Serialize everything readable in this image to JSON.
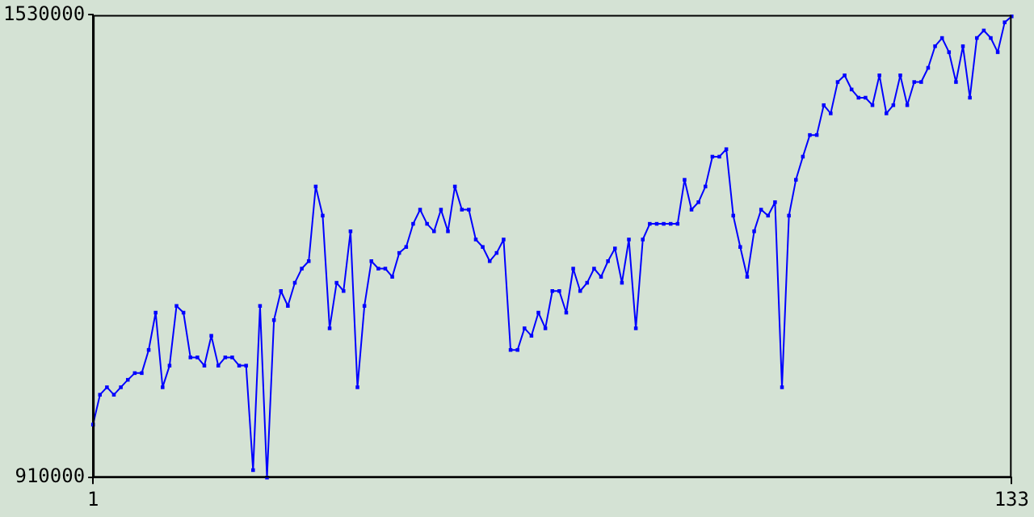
{
  "chart_data": {
    "type": "line",
    "xlim": [
      1,
      133
    ],
    "xticks": [
      1,
      133
    ],
    "ylim": [
      910000,
      1530000
    ],
    "yticks": [
      910000,
      1530000
    ],
    "grid": false,
    "marker": "square",
    "line_style": "solid",
    "legend": false,
    "x": [
      1,
      2,
      3,
      4,
      5,
      6,
      7,
      8,
      9,
      10,
      11,
      12,
      13,
      14,
      15,
      16,
      17,
      18,
      19,
      20,
      21,
      22,
      23,
      24,
      25,
      26,
      27,
      28,
      29,
      30,
      31,
      32,
      33,
      34,
      35,
      36,
      37,
      38,
      39,
      40,
      41,
      42,
      43,
      44,
      45,
      46,
      47,
      48,
      49,
      50,
      51,
      52,
      53,
      54,
      55,
      56,
      57,
      58,
      59,
      60,
      61,
      62,
      63,
      64,
      65,
      66,
      67,
      68,
      69,
      70,
      71,
      72,
      73,
      74,
      75,
      76,
      77,
      78,
      79,
      80,
      81,
      82,
      83,
      84,
      85,
      86,
      87,
      88,
      89,
      90,
      91,
      92,
      93,
      94,
      95,
      96,
      97,
      98,
      99,
      100,
      101,
      102,
      103,
      104,
      105,
      106,
      107,
      108,
      109,
      110,
      111,
      112,
      113,
      114,
      115,
      116,
      117,
      118,
      119,
      120,
      121,
      122,
      123,
      124,
      125,
      126,
      127,
      128,
      129,
      130,
      131,
      132,
      133
    ],
    "series": [
      {
        "color": "#0000ff",
        "values": [
          981000,
          1021000,
          1031000,
          1021000,
          1031000,
          1041000,
          1050000,
          1050000,
          1081000,
          1131000,
          1031000,
          1060000,
          1140000,
          1131000,
          1071000,
          1071000,
          1060000,
          1100000,
          1060000,
          1071000,
          1071000,
          1060000,
          1060000,
          920000,
          1140000,
          910000,
          1121000,
          1160000,
          1140000,
          1171000,
          1190000,
          1200000,
          1300000,
          1261000,
          1110000,
          1171000,
          1160000,
          1240000,
          1031000,
          1140000,
          1200000,
          1190000,
          1190000,
          1179000,
          1211000,
          1219000,
          1250000,
          1269000,
          1250000,
          1240000,
          1269000,
          1240000,
          1300000,
          1269000,
          1269000,
          1229000,
          1219000,
          1200000,
          1211000,
          1229000,
          1081000,
          1081000,
          1110000,
          1100000,
          1131000,
          1110000,
          1160000,
          1160000,
          1131000,
          1190000,
          1160000,
          1171000,
          1190000,
          1179000,
          1200000,
          1217000,
          1171000,
          1229000,
          1110000,
          1229000,
          1250000,
          1250000,
          1250000,
          1250000,
          1250000,
          1309000,
          1269000,
          1279000,
          1300000,
          1340000,
          1340000,
          1350000,
          1261000,
          1219000,
          1179000,
          1240000,
          1269000,
          1261000,
          1279000,
          1031000,
          1261000,
          1309000,
          1340000,
          1369000,
          1369000,
          1409000,
          1398000,
          1440000,
          1449000,
          1430000,
          1419000,
          1419000,
          1409000,
          1449000,
          1398000,
          1409000,
          1449000,
          1409000,
          1440000,
          1440000,
          1459000,
          1488000,
          1499000,
          1480000,
          1440000,
          1488000,
          1419000,
          1499000,
          1509000,
          1499000,
          1480000,
          1520000,
          1528000
        ]
      }
    ]
  }
}
